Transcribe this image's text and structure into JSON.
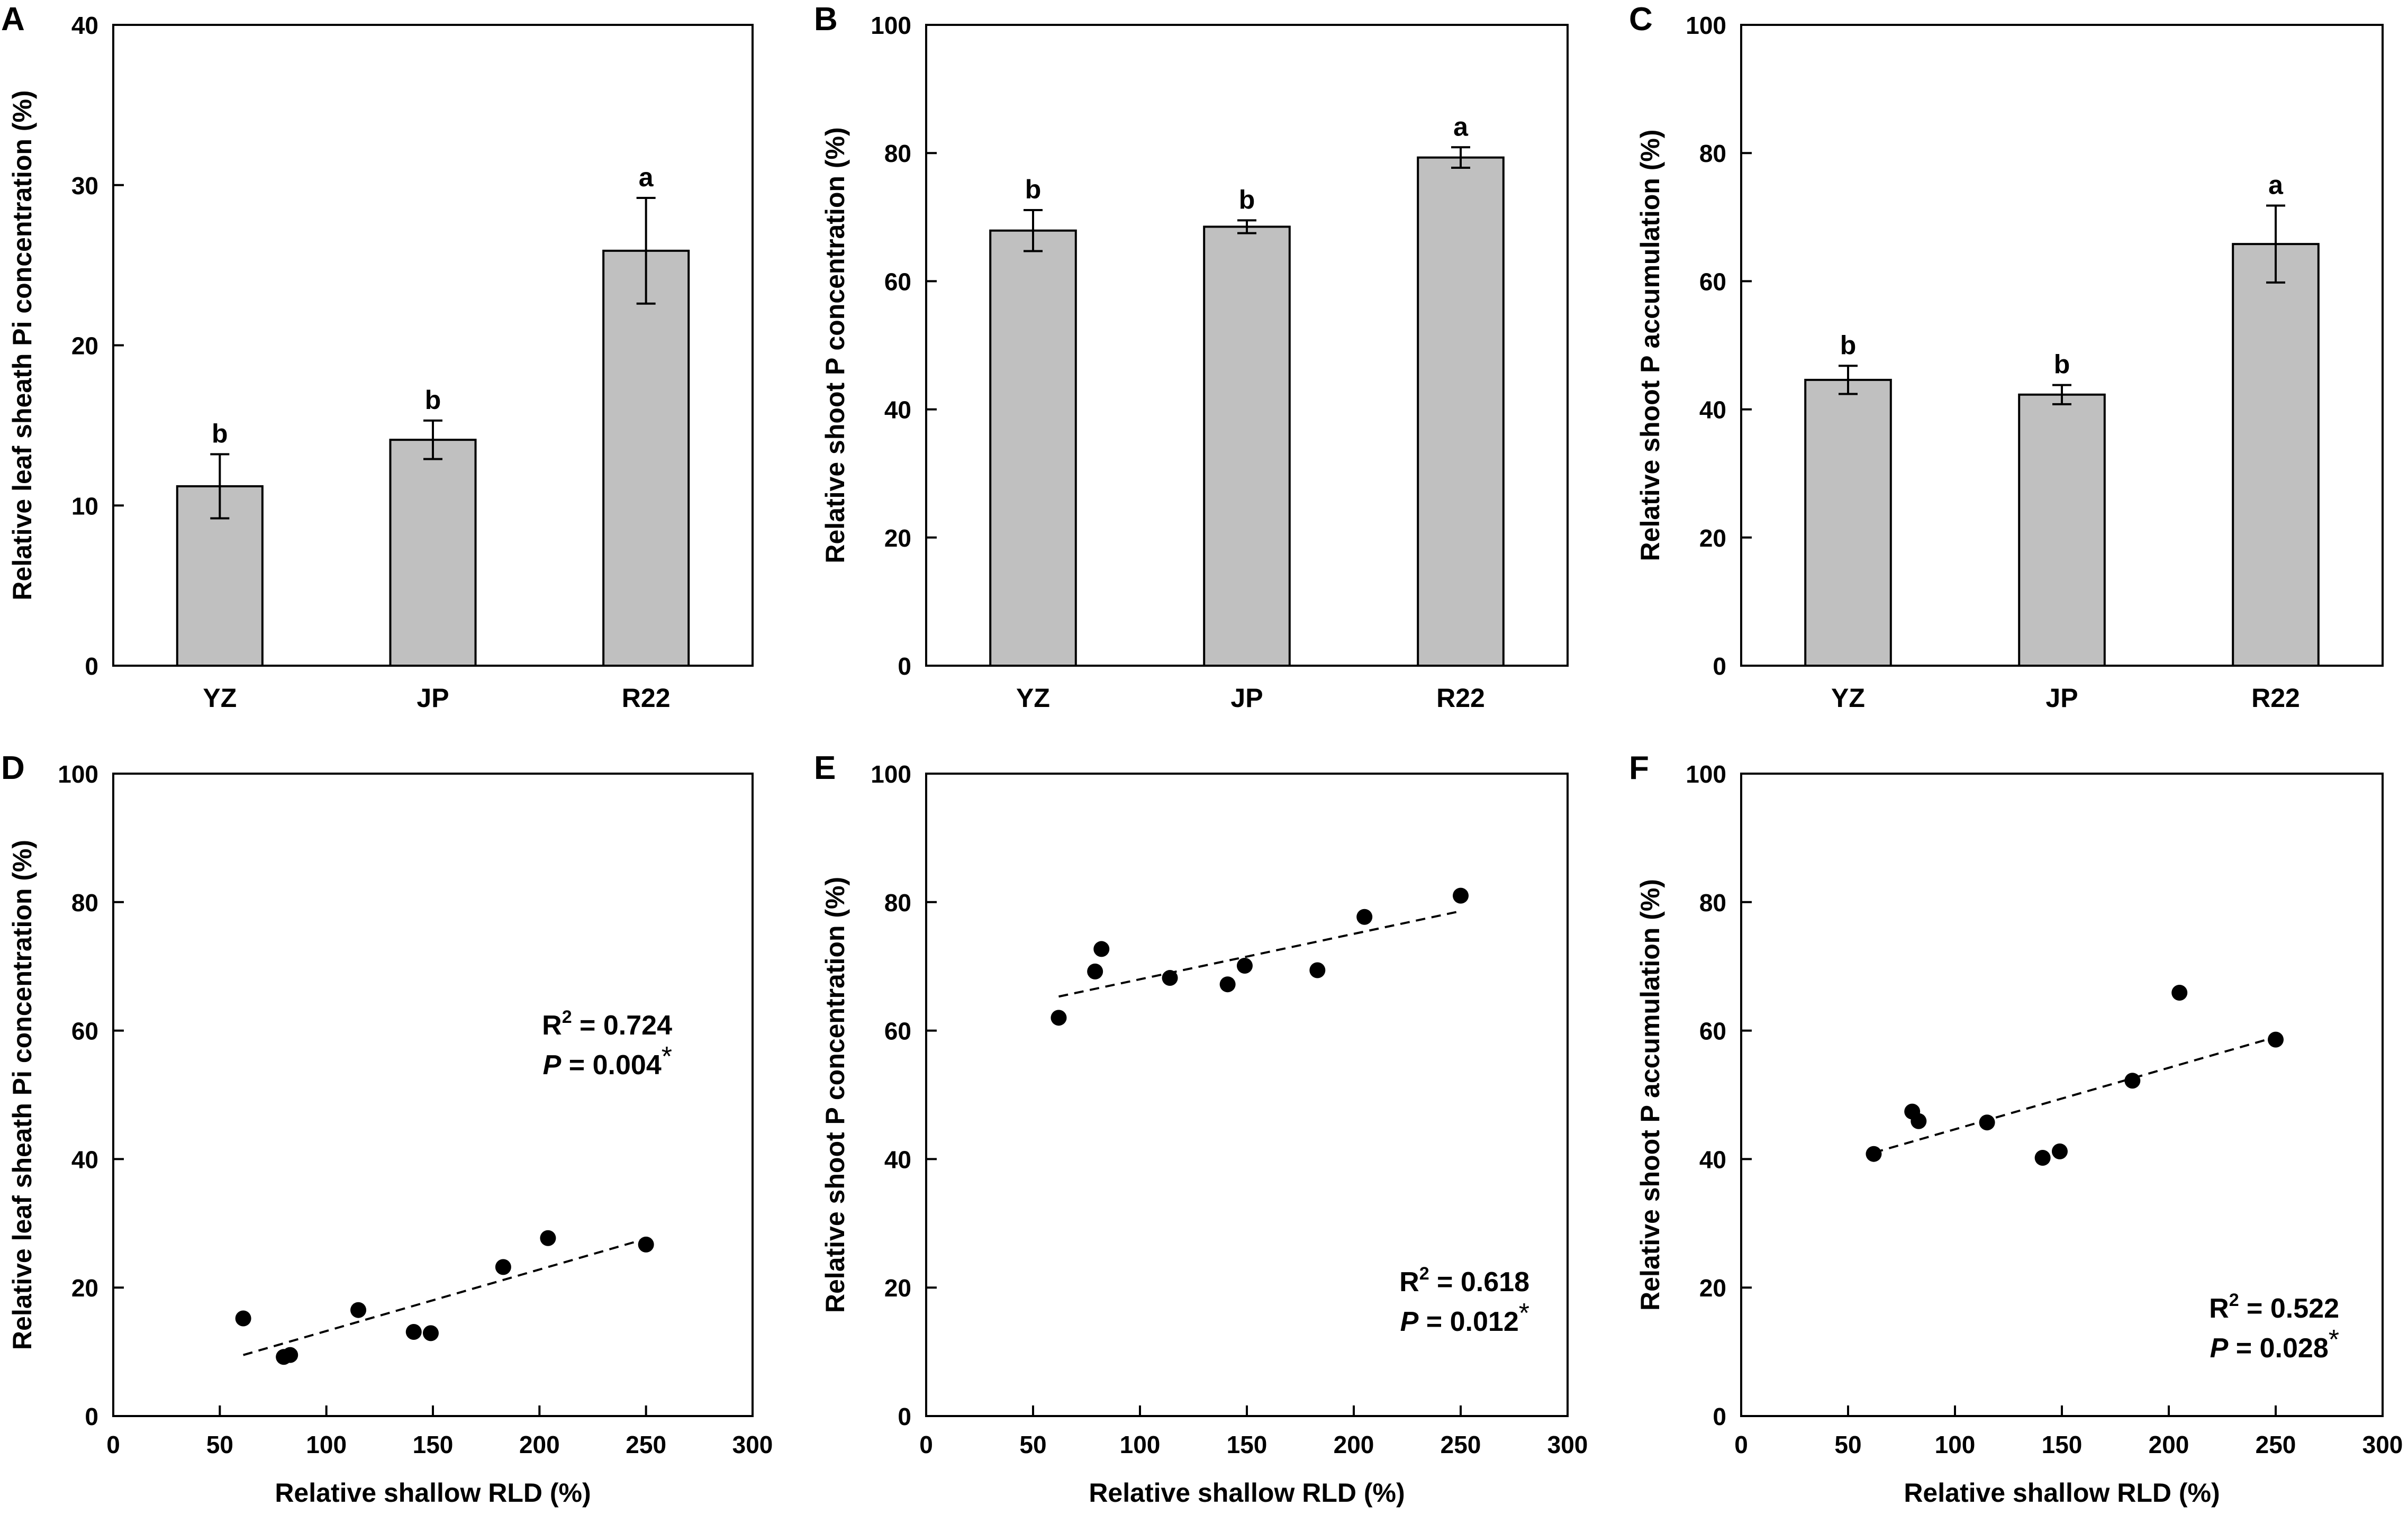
{
  "chart_data": [
    {
      "panel": "A",
      "type": "bar",
      "ylabel": "Relative leaf sheath Pi concentration (%)",
      "xlabel": "",
      "categories": [
        "YZ",
        "JP",
        "R22"
      ],
      "values": [
        11.2,
        14.1,
        25.9
      ],
      "errors": [
        2.0,
        1.2,
        3.3
      ],
      "significance": [
        "b",
        "b",
        "a"
      ],
      "ylim": [
        0,
        40
      ],
      "yticks": [
        0,
        10,
        20,
        30,
        40
      ],
      "bar_color": "#c0c0c0"
    },
    {
      "panel": "B",
      "type": "bar",
      "ylabel": "Relative shoot P concentration (%)",
      "xlabel": "",
      "categories": [
        "YZ",
        "JP",
        "R22"
      ],
      "values": [
        67.9,
        68.5,
        79.3
      ],
      "errors": [
        3.2,
        1.0,
        1.6
      ],
      "significance": [
        "b",
        "b",
        "a"
      ],
      "ylim": [
        0,
        100
      ],
      "yticks": [
        0,
        20,
        40,
        60,
        80,
        100
      ],
      "bar_color": "#c0c0c0"
    },
    {
      "panel": "C",
      "type": "bar",
      "ylabel": "Relative shoot P accumulation (%)",
      "xlabel": "",
      "categories": [
        "YZ",
        "JP",
        "R22"
      ],
      "values": [
        44.6,
        42.3,
        65.8
      ],
      "errors": [
        2.2,
        1.5,
        6.0
      ],
      "significance": [
        "b",
        "b",
        "a"
      ],
      "ylim": [
        0,
        100
      ],
      "yticks": [
        0,
        20,
        40,
        60,
        80,
        100
      ],
      "bar_color": "#c0c0c0"
    },
    {
      "panel": "D",
      "type": "scatter",
      "ylabel": "Relative leaf sheath Pi concentration (%)",
      "xlabel": "Relative shallow RLD (%)",
      "x": [
        61,
        80,
        83,
        115,
        141,
        149,
        183,
        204,
        250
      ],
      "y": [
        15.2,
        9.2,
        9.5,
        16.5,
        13.1,
        12.9,
        23.2,
        27.7,
        26.7
      ],
      "trendline": {
        "x": [
          61,
          250
        ],
        "y": [
          9.5,
          27.6
        ],
        "style": "dashed"
      },
      "stats": {
        "r2_text": "R",
        "r2_sup": "2",
        "r2_value": " = 0.724",
        "p_text": "P",
        "p_value": " = 0.004",
        "p_mark": "*"
      },
      "xlim": [
        0,
        300
      ],
      "ylim": [
        0,
        100
      ],
      "xticks": [
        0,
        50,
        100,
        150,
        200,
        250,
        300
      ],
      "yticks": [
        0,
        20,
        40,
        60,
        80,
        100
      ]
    },
    {
      "panel": "E",
      "type": "scatter",
      "ylabel": "Relative shoot P concentration (%)",
      "xlabel": "Relative shallow RLD (%)",
      "x": [
        62,
        79,
        82,
        114,
        141,
        149,
        183,
        205,
        250
      ],
      "y": [
        62.0,
        69.2,
        72.7,
        68.2,
        67.2,
        70.1,
        69.4,
        77.7,
        81.0
      ],
      "trendline": {
        "x": [
          62,
          250
        ],
        "y": [
          65.3,
          78.6
        ],
        "style": "dashed"
      },
      "stats": {
        "r2_text": "R",
        "r2_sup": "2",
        "r2_value": " = 0.618",
        "p_text": "P",
        "p_value": " = 0.012",
        "p_mark": "*"
      },
      "xlim": [
        0,
        300
      ],
      "ylim": [
        0,
        100
      ],
      "xticks": [
        0,
        50,
        100,
        150,
        200,
        250,
        300
      ],
      "yticks": [
        0,
        20,
        40,
        60,
        80,
        100
      ]
    },
    {
      "panel": "F",
      "type": "scatter",
      "ylabel": "Relative shoot P accumulation (%)",
      "xlabel": "Relative shallow RLD (%)",
      "x": [
        62,
        80,
        83,
        115,
        141,
        149,
        183,
        205,
        250
      ],
      "y": [
        40.8,
        47.4,
        45.9,
        45.7,
        40.2,
        41.2,
        52.2,
        65.9,
        58.6
      ],
      "trendline": {
        "x": [
          62,
          250
        ],
        "y": [
          41.0,
          59.0
        ],
        "style": "dashed"
      },
      "stats": {
        "r2_text": "R",
        "r2_sup": "2",
        "r2_value": " = 0.522",
        "p_text": "P",
        "p_value": " = 0.028",
        "p_mark": "*"
      },
      "xlim": [
        0,
        300
      ],
      "ylim": [
        0,
        100
      ],
      "xticks": [
        0,
        50,
        100,
        150,
        200,
        250,
        300
      ],
      "yticks": [
        0,
        20,
        40,
        60,
        80,
        100
      ]
    }
  ]
}
